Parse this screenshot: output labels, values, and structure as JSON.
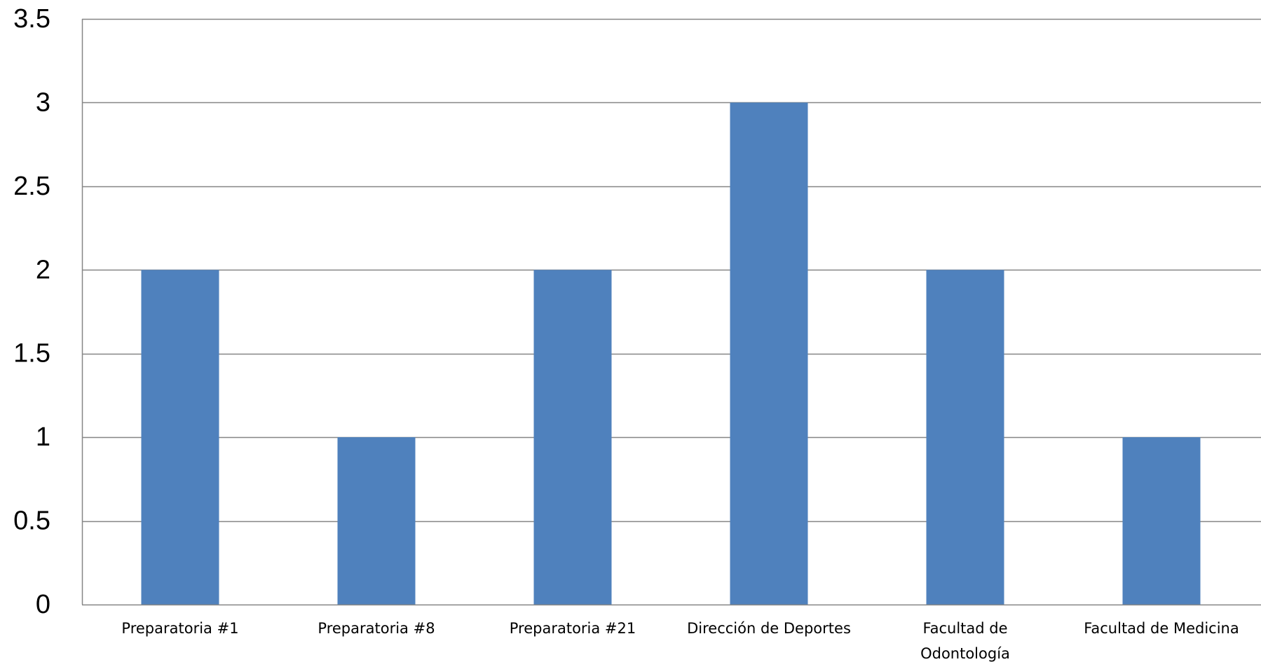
{
  "chart_data": {
    "type": "bar",
    "categories": [
      [
        "Preparatoria #1"
      ],
      [
        "Preparatoria #8"
      ],
      [
        "Preparatoria #21"
      ],
      [
        "Dirección de Deportes"
      ],
      [
        "Facultad de",
        "Odontología"
      ],
      [
        "Facultad de Medicina"
      ]
    ],
    "values": [
      2,
      1,
      2,
      3,
      2,
      1
    ],
    "ylim": [
      0,
      3.5
    ],
    "y_ticks": [
      "0",
      "0.5",
      "1",
      "1.5",
      "2",
      "2.5",
      "3",
      "3.5"
    ],
    "y_tick_values": [
      0,
      0.5,
      1,
      1.5,
      2,
      2.5,
      3,
      3.5
    ],
    "grid": true,
    "legend": "none",
    "colors": {
      "bar": "#4F81BD",
      "grid": "#868686",
      "axis": "#868686",
      "text": "#000000"
    }
  }
}
